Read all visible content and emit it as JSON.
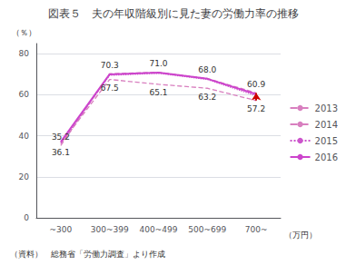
{
  "chart_data": {
    "type": "line",
    "title": "図表５　夫の年収階級別に見た妻の労働力率の推移",
    "xlabel": "（万円）",
    "ylabel": "（％）",
    "caption": "（資料）　総務省「労働力調査」より作成",
    "categories": [
      "~300",
      "300~399",
      "400~499",
      "500~699",
      "700~"
    ],
    "series": [
      {
        "name": "2013",
        "color": "#d87fbf",
        "line_style": "dashed",
        "values": [
          35.2,
          70.3,
          71.0,
          68.0,
          60.9
        ],
        "data_labels": true,
        "value_labels": [
          "35.2",
          "70.3",
          "71.0",
          "68.0",
          "60.9"
        ]
      },
      {
        "name": "2014",
        "color": "#d87fbf",
        "line_style": "dashed",
        "values": [
          36.1,
          67.5,
          65.1,
          63.2,
          57.2
        ],
        "data_labels": true,
        "value_labels": [
          "36.1",
          "67.5",
          "65.1",
          "63.2",
          "57.2"
        ]
      },
      {
        "name": "2015",
        "color": "#cc55cc",
        "line_style": "dotted",
        "values": [
          36.5,
          69.5,
          70.5,
          67.5,
          59.5
        ]
      },
      {
        "name": "2016",
        "color": "#cc44cc",
        "line_style": "solid",
        "values": [
          37.0,
          70.0,
          70.8,
          67.8,
          60.3
        ]
      }
    ],
    "annotations": [
      {
        "type": "arrow",
        "x": "700~",
        "from": "2014",
        "to": "2013",
        "color": "#cc0000"
      }
    ],
    "ylim": [
      0,
      85
    ],
    "yticks": [
      0,
      20,
      40,
      60,
      80
    ],
    "grid": true,
    "legend": "right"
  }
}
